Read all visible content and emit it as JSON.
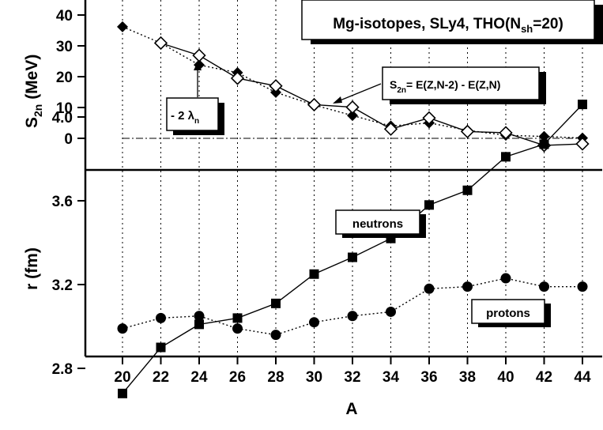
{
  "chart_data": [
    {
      "type": "line",
      "panel": "top",
      "x": [
        20,
        22,
        24,
        26,
        28,
        30,
        32,
        34,
        36,
        38,
        40,
        42,
        44
      ],
      "series": [
        {
          "name": "- 2 λ_n",
          "marker": "filled-diamond",
          "line": "dotted",
          "values": [
            36.2,
            30.9,
            23.8,
            21.3,
            14.9,
            10.8,
            7.4,
            4.0,
            5.0,
            2.6,
            1.0,
            0.6,
            0.1
          ]
        },
        {
          "name": "S_2n = E(Z,N-2) - E(Z,N)",
          "marker": "open-diamond",
          "line": "solid",
          "values": [
            null,
            30.9,
            26.9,
            19.5,
            17.0,
            10.9,
            10.1,
            3.0,
            6.6,
            2.2,
            1.8,
            -2.3,
            -1.8
          ]
        }
      ],
      "ylabel": "S_2n (MeV)",
      "yticks": [
        "40",
        "30",
        "20",
        "10",
        "0"
      ],
      "ylim": [
        -6,
        40
      ],
      "reference_line": {
        "y": 0,
        "style": "dash-dot"
      },
      "title_box": {
        "prefix": "Mg-isotopes, SLy4, THO(N",
        "sub": "sh",
        "suffix": "=20)"
      },
      "label_s2n": {
        "base": "S",
        "sub": "2n",
        "rest": "= E(Z,N-2) - E(Z,N)"
      },
      "label_lambda": {
        "prefix": "- 2 λ",
        "sub": "n"
      }
    },
    {
      "type": "line",
      "panel": "bottom",
      "x": [
        20,
        22,
        24,
        26,
        28,
        30,
        32,
        34,
        36,
        38,
        40,
        42,
        44
      ],
      "series": [
        {
          "name": "neutrons",
          "marker": "filled-square",
          "line": "solid",
          "values": [
            2.68,
            2.9,
            3.01,
            3.04,
            3.11,
            3.25,
            3.33,
            3.42,
            3.58,
            3.65,
            3.81,
            3.87,
            4.06
          ]
        },
        {
          "name": "protons",
          "marker": "filled-circle",
          "line": "dotted",
          "values": [
            2.99,
            3.04,
            3.05,
            2.99,
            2.96,
            3.02,
            3.05,
            3.07,
            3.18,
            3.19,
            3.23,
            3.19,
            3.19
          ]
        }
      ],
      "ylabel": "r (fm)",
      "xlabel": "A",
      "yticks": [
        "4.0",
        "3.6",
        "3.2",
        "2.8"
      ],
      "xticks": [
        "20",
        "22",
        "24",
        "26",
        "28",
        "30",
        "32",
        "34",
        "36",
        "38",
        "40",
        "42",
        "44"
      ],
      "ylim": [
        2.62,
        4.27
      ],
      "xlim": [
        18.9,
        45.1
      ],
      "grid": "vertical dotted"
    }
  ]
}
